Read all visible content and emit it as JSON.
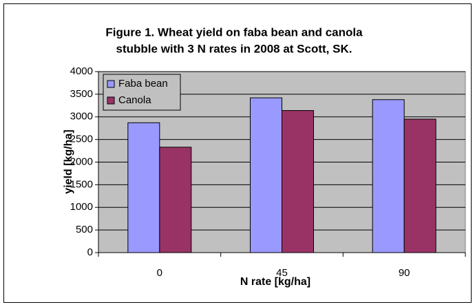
{
  "chart_data": {
    "type": "bar",
    "title": "Figure 1. Wheat yield on faba bean and canola",
    "subtitle": "stubble with 3 N rates in 2008 at Scott, SK.",
    "x_label": "N rate [kg/ha]",
    "y_label": "yield [kg/ha]",
    "categories": [
      "0",
      "45",
      "90"
    ],
    "series": [
      {
        "name": "Faba bean",
        "color": "#9999ff",
        "values": [
          2870,
          3420,
          3380
        ]
      },
      {
        "name": "Canola",
        "color": "#993366",
        "values": [
          2330,
          3140,
          2950
        ]
      }
    ],
    "ylim": [
      0,
      4000
    ],
    "yticks": [
      0,
      500,
      1000,
      1500,
      2000,
      2500,
      3000,
      3500,
      4000
    ],
    "grid": true,
    "legend": "upper-left"
  }
}
